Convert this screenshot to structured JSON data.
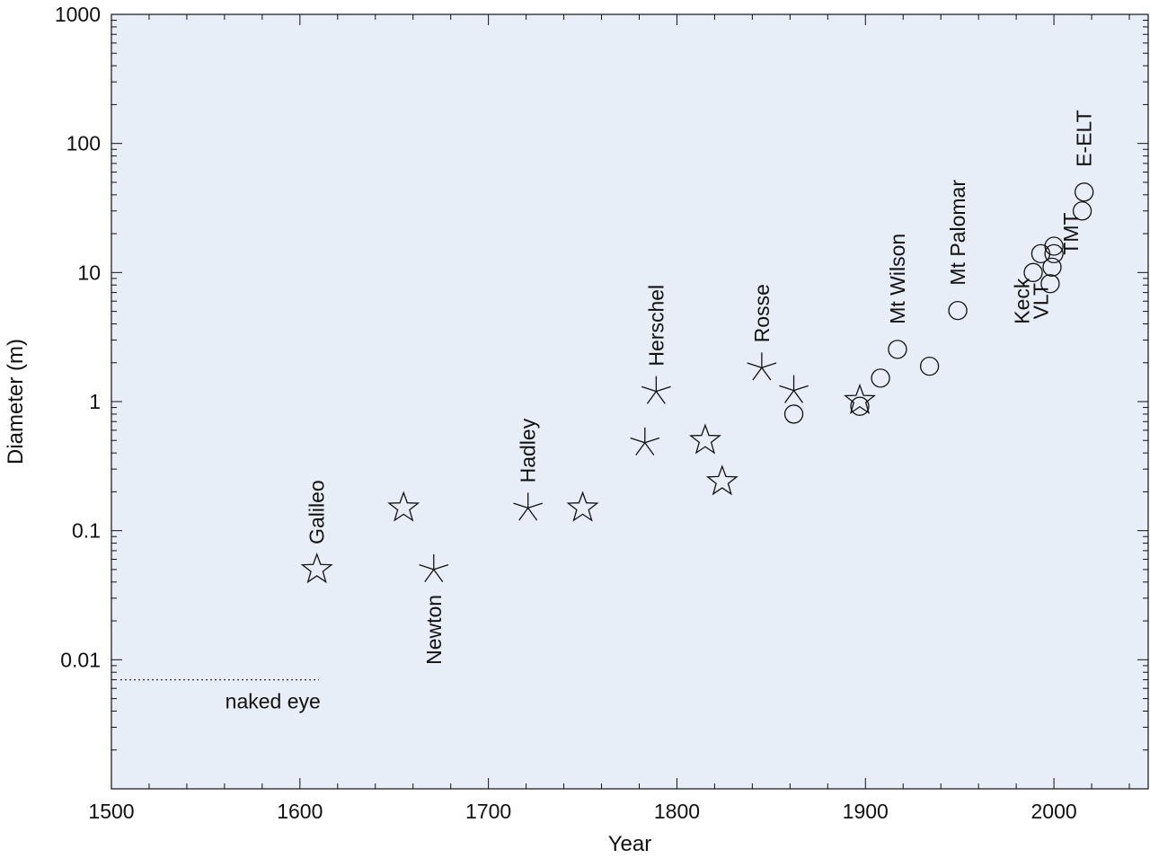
{
  "chart_data": {
    "type": "scatter",
    "xlabel": "Year",
    "ylabel": "Diameter (m)",
    "xlim": [
      1500,
      2050
    ],
    "ylim": [
      0.001,
      1000
    ],
    "yscale": "log",
    "x_ticks": [
      1500,
      1600,
      1700,
      1800,
      1900,
      2000
    ],
    "x_tick_labels": [
      "1500",
      "1600",
      "1700",
      "1800",
      "1900",
      "2000"
    ],
    "y_ticks": [
      0.01,
      0.1,
      1,
      10,
      100,
      1000
    ],
    "y_tick_labels": [
      "0.01",
      "0.1",
      "1",
      "10",
      "100",
      "1000"
    ],
    "background_color": "#e7eef8",
    "highlight_color": "#2a8aa5",
    "series": [
      {
        "marker": "star",
        "points": [
          {
            "x": 1609,
            "y": 0.05
          },
          {
            "x": 1655,
            "y": 0.15
          },
          {
            "x": 1750,
            "y": 0.15
          },
          {
            "x": 1815,
            "y": 0.5
          },
          {
            "x": 1824,
            "y": 0.24
          },
          {
            "x": 1897,
            "y": 1.02
          }
        ]
      },
      {
        "marker": "asterisk",
        "points": [
          {
            "x": 1671,
            "y": 0.05
          },
          {
            "x": 1721,
            "y": 0.15
          },
          {
            "x": 1783,
            "y": 0.48
          },
          {
            "x": 1789,
            "y": 1.2
          },
          {
            "x": 1845,
            "y": 1.83
          },
          {
            "x": 1862,
            "y": 1.22
          }
        ]
      },
      {
        "marker": "circle",
        "points": [
          {
            "x": 1862,
            "y": 0.8
          },
          {
            "x": 1897,
            "y": 0.92
          },
          {
            "x": 1908,
            "y": 1.52
          },
          {
            "x": 1917,
            "y": 2.54
          },
          {
            "x": 1934,
            "y": 1.88
          },
          {
            "x": 1949,
            "y": 5.08
          },
          {
            "x": 1989,
            "y": 10.0
          },
          {
            "x": 1993,
            "y": 14.0
          },
          {
            "x": 1998,
            "y": 8.2
          },
          {
            "x": 1999,
            "y": 11.0
          },
          {
            "x": 2000,
            "y": 16.0
          },
          {
            "x": 2000,
            "y": 14.0
          },
          {
            "x": 2015,
            "y": 30.0
          },
          {
            "x": 2016,
            "y": 42.0
          }
        ]
      }
    ],
    "annotations": [
      {
        "text": "Galileo",
        "x": 1609,
        "y": 0.05,
        "rotated": true,
        "position": "above"
      },
      {
        "text": "Newton",
        "x": 1671,
        "y": 0.05,
        "rotated": true,
        "position": "below"
      },
      {
        "text": "Hadley",
        "x": 1721,
        "y": 0.15,
        "rotated": true,
        "position": "above"
      },
      {
        "text": "Herschel",
        "x": 1789,
        "y": 1.2,
        "rotated": true,
        "position": "above"
      },
      {
        "text": "Rosse",
        "x": 1845,
        "y": 1.83,
        "rotated": true,
        "position": "above"
      },
      {
        "text": "Mt Wilson",
        "x": 1917,
        "y": 2.54,
        "rotated": true,
        "position": "above"
      },
      {
        "text": "Mt Palomar",
        "x": 1949,
        "y": 5.08,
        "rotated": true,
        "position": "above"
      },
      {
        "text": "Keck",
        "x": 1983,
        "y": 6.0,
        "rotated": true,
        "position": "left"
      },
      {
        "text": "VLT",
        "x": 1993,
        "y": 6.0,
        "rotated": true,
        "position": "left"
      },
      {
        "text": "TMT",
        "x": 2009,
        "y": 20.0,
        "rotated": true,
        "position": "left"
      },
      {
        "text": "E-ELT",
        "x": 2016,
        "y": 42.0,
        "rotated": true,
        "position": "above",
        "highlight": true
      }
    ],
    "reference_line": {
      "label": "naked eye",
      "y": 0.007,
      "x_start": 1500,
      "x_end": 1610,
      "style": "dotted"
    }
  }
}
